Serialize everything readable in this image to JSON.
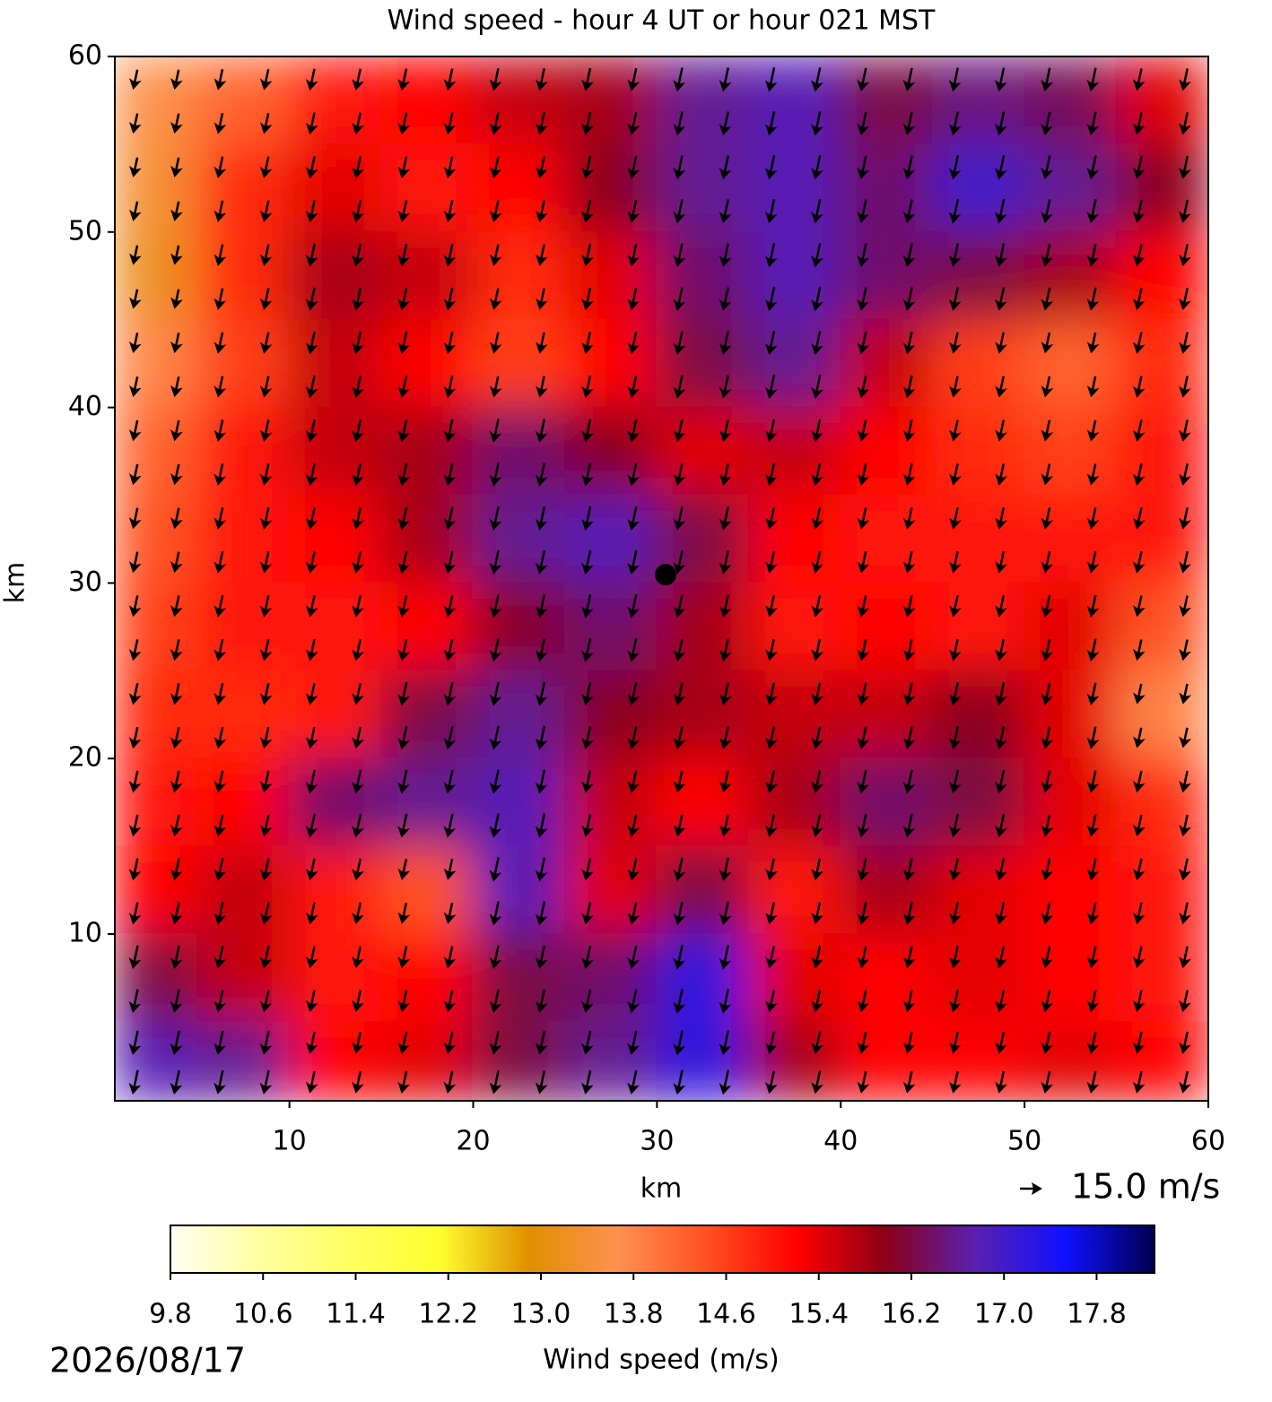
{
  "chart_data": {
    "type": "heatmap",
    "title": "Wind speed - hour 4 UT or hour 021 MST",
    "x_label": "km",
    "y_label": "km",
    "xbins": [
      0.5,
      5,
      10,
      15,
      20,
      25,
      30,
      35,
      40,
      45,
      50,
      55,
      60
    ],
    "ybins": [
      60,
      55,
      50,
      45,
      40,
      35,
      30,
      25,
      20,
      15,
      10,
      5,
      0.5
    ],
    "values": [
      [
        13.6,
        14.2,
        15.0,
        15.2,
        15.6,
        15.8,
        16.6,
        16.8,
        16.2,
        16.5,
        16.3,
        15.4
      ],
      [
        13.4,
        14.8,
        15.4,
        15.0,
        15.2,
        16.0,
        16.6,
        16.8,
        16.4,
        17.0,
        16.6,
        16.0
      ],
      [
        13.2,
        14.8,
        15.8,
        15.6,
        14.8,
        15.4,
        16.4,
        16.8,
        16.4,
        16.2,
        15.8,
        15.2
      ],
      [
        13.8,
        14.6,
        15.6,
        15.2,
        14.6,
        15.2,
        16.2,
        16.6,
        15.6,
        14.6,
        14.2,
        14.8
      ],
      [
        14.2,
        15.0,
        15.6,
        15.8,
        16.4,
        16.0,
        15.4,
        15.6,
        15.2,
        14.8,
        14.6,
        15.0
      ],
      [
        14.4,
        15.0,
        15.2,
        15.8,
        16.6,
        16.8,
        16.2,
        15.2,
        15.0,
        15.0,
        15.0,
        15.0
      ],
      [
        14.6,
        15.0,
        15.0,
        15.2,
        16.0,
        16.4,
        15.8,
        15.0,
        15.2,
        15.0,
        15.4,
        14.4
      ],
      [
        14.8,
        14.8,
        15.0,
        16.2,
        16.6,
        16.0,
        15.8,
        15.6,
        15.6,
        16.0,
        15.4,
        13.8
      ],
      [
        15.0,
        15.2,
        16.4,
        16.6,
        16.8,
        15.6,
        15.2,
        15.8,
        16.4,
        16.2,
        15.4,
        14.8
      ],
      [
        15.2,
        15.6,
        15.0,
        14.4,
        16.8,
        15.4,
        16.2,
        15.0,
        15.8,
        15.4,
        15.2,
        15.0
      ],
      [
        16.2,
        15.6,
        15.0,
        15.2,
        16.2,
        16.4,
        17.2,
        15.4,
        15.2,
        15.4,
        15.2,
        15.0
      ],
      [
        16.8,
        16.6,
        15.2,
        15.4,
        16.2,
        16.6,
        17.2,
        15.8,
        15.2,
        15.2,
        15.4,
        15.2
      ]
    ],
    "xlim": [
      0.5,
      60
    ],
    "ylim": [
      0.5,
      60
    ],
    "xticks": [
      10,
      20,
      30,
      40,
      50,
      60
    ],
    "yticks": [
      10,
      20,
      30,
      40,
      50,
      60
    ],
    "quiver_key": "15.0 m/s",
    "colormap": [
      "#fffff5",
      "#ffffa0",
      "#ffff60",
      "#ffff30",
      "#e09000",
      "#ff9050",
      "#ff5020",
      "#ff0000",
      "#8a0018",
      "#5a20b0",
      "#1010ff",
      "#000050"
    ],
    "clim": [
      9.8,
      18.3
    ],
    "colorbar_label": "Wind speed (m/s)",
    "colorbar_ticks": [
      9.8,
      10.6,
      11.4,
      12.2,
      {
        "value": 13,
        "label": "13.0"
      },
      13.8,
      14.6,
      15.4,
      16.2,
      {
        "value": 17,
        "label": "17.0"
      },
      17.8
    ],
    "date": "2026/08/17"
  }
}
